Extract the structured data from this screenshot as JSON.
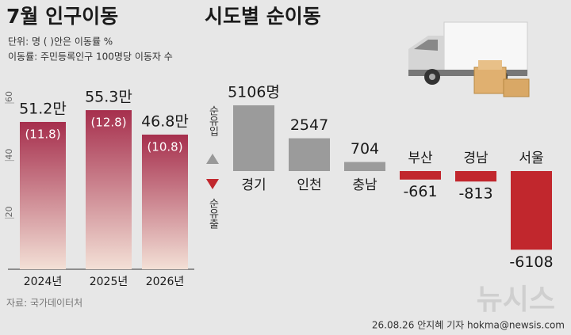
{
  "chart_data": [
    {
      "type": "bar",
      "title": "7월 인구이동",
      "notes": [
        "단위: 명 ( )안은 이동률 %",
        "이동률: 주민등록인구 100명당 이동자 수"
      ],
      "categories": [
        "2024년",
        "2025년",
        "2026년"
      ],
      "values": [
        51.2,
        55.3,
        46.8
      ],
      "value_labels": [
        "51.2만",
        "55.3만",
        "46.8만"
      ],
      "rates": [
        "(11.8)",
        "(12.8)",
        "(10.8)"
      ],
      "ylim": [
        0,
        60
      ],
      "yticks": [
        20,
        40,
        60
      ],
      "gradient": [
        "#a62f4d",
        "#f3e0d6"
      ]
    },
    {
      "type": "diverging-bar",
      "title": "시도별 순이동",
      "categories": [
        "경기",
        "인천",
        "충남",
        "부산",
        "경남",
        "서울"
      ],
      "values": [
        5106,
        2547,
        704,
        -661,
        -813,
        -6108
      ],
      "value_labels": [
        "5106명",
        "2547",
        "704",
        "-661",
        "-813",
        "-6108"
      ],
      "colors": {
        "positive": "#9b9b9b",
        "negative": "#c1272d"
      },
      "inflow_label": "순유입",
      "outflow_label": "순유출"
    }
  ],
  "source": "자료: 국가데이터처",
  "footer": "26.08.26 안지혜 기자 hokma@newsis.com",
  "logo": "뉴시스"
}
